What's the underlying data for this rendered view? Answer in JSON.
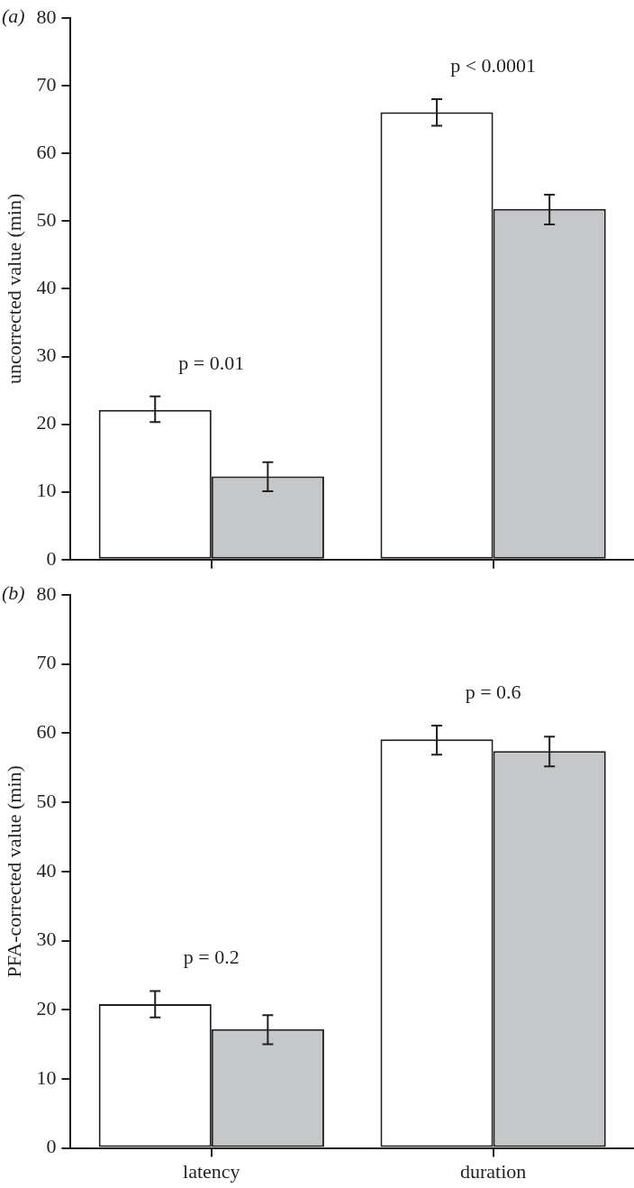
{
  "chart_data": [
    {
      "type": "bar",
      "title": "(a)",
      "ylabel": "uncorrected value (min)",
      "categories": [
        null,
        null
      ],
      "tick_labels": "y",
      "series": [
        {
          "color": "#ffffff",
          "values": [
            22.1,
            66.1
          ],
          "errors": [
            [
              20.3,
              24.1
            ],
            [
              64.1,
              68.0
            ]
          ]
        },
        {
          "color": "#c6c7c9",
          "values": [
            12.3,
            51.8
          ],
          "errors": [
            [
              10.1,
              14.4
            ],
            [
              49.5,
              53.9
            ]
          ]
        }
      ],
      "ylim": [
        0,
        80
      ],
      "yticks": [
        0,
        10,
        20,
        30,
        40,
        50,
        60,
        70,
        80
      ],
      "grid": false,
      "legend": false,
      "annotations": [
        "p = 0.01",
        "p < 0.0001"
      ]
    },
    {
      "type": "bar",
      "title": "(b)",
      "ylabel": "PFA-corrected value (min)",
      "categories": [
        "latency",
        "duration"
      ],
      "series": [
        {
          "color": "#ffffff",
          "values": [
            20.8,
            59.1
          ],
          "errors": [
            [
              18.9,
              22.7
            ],
            [
              56.9,
              61.1
            ]
          ]
        },
        {
          "color": "#c6c7c9",
          "values": [
            17.2,
            57.4
          ],
          "errors": [
            [
              15.0,
              19.2
            ],
            [
              55.2,
              59.5
            ]
          ]
        }
      ],
      "ylim": [
        0,
        80
      ],
      "yticks": [
        0,
        10,
        20,
        30,
        40,
        50,
        60,
        70,
        80
      ],
      "grid": false,
      "legend": false,
      "annotations": [
        "p = 0.2",
        "p = 0.6"
      ]
    }
  ]
}
